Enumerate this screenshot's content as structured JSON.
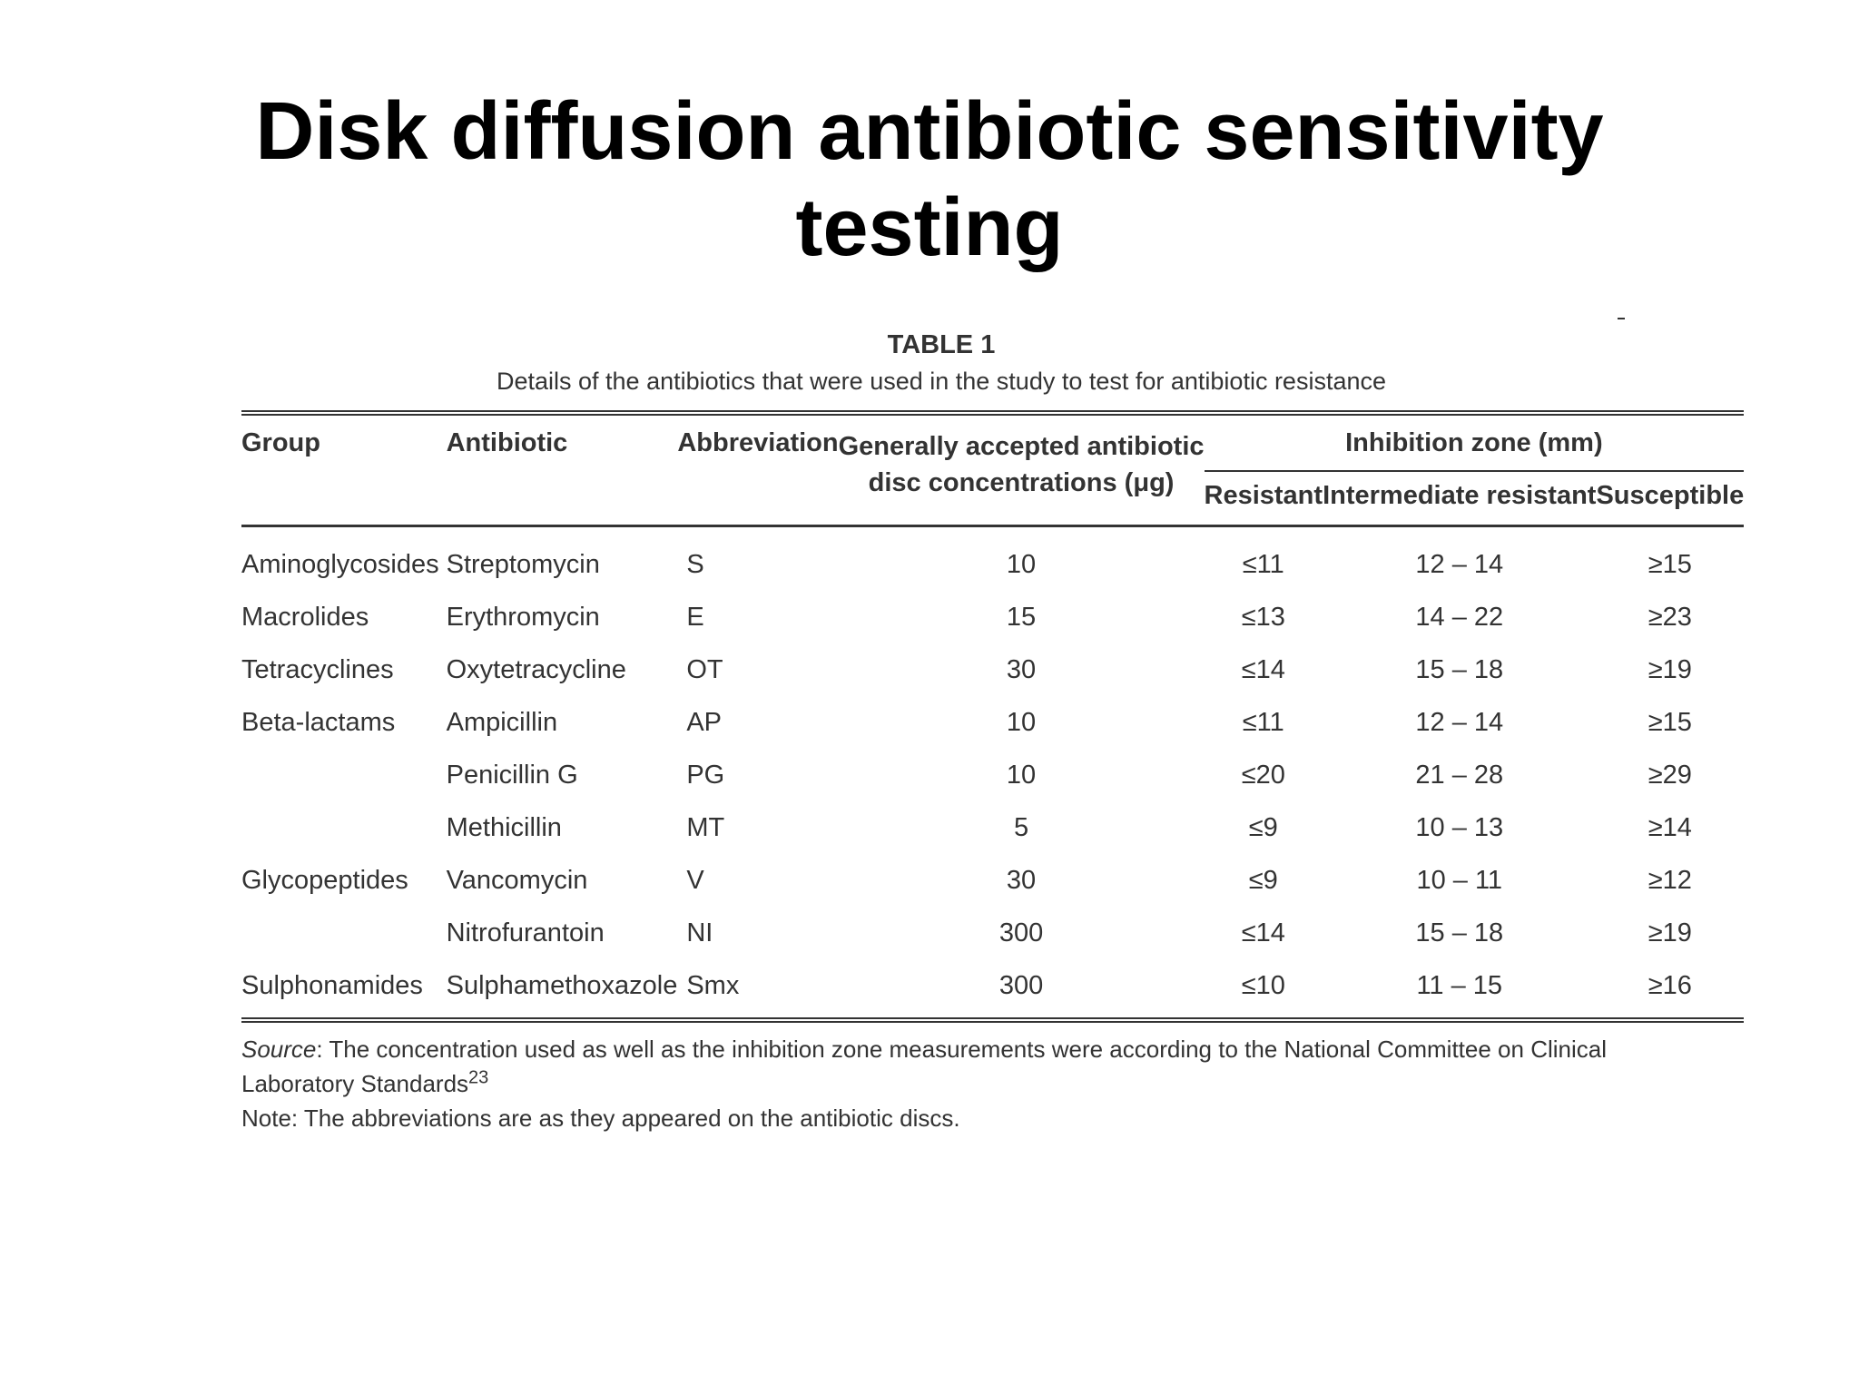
{
  "slide": {
    "title_line1": "Disk diffusion antibiotic sensitivity",
    "title_line2": "testing"
  },
  "table": {
    "label": "TABLE 1",
    "caption": "Details of the antibiotics that were used in the study to test for antibiotic resistance",
    "headers": {
      "group": "Group",
      "antibiotic": "Antibiotic",
      "abbreviation": "Abbreviation",
      "concentration_line1": "Generally accepted antibiotic",
      "concentration_line2": "disc concentrations (μg)",
      "inhibition_zone": "Inhibition zone (mm)",
      "resistant": "Resistant",
      "intermediate": "Intermediate resistant",
      "susceptible": "Susceptible"
    },
    "rows": [
      {
        "group": "Aminoglycosides",
        "antibiotic": "Streptomycin",
        "abbreviation": "S",
        "concentration": "10",
        "resistant": "≤11",
        "intermediate": "12 – 14",
        "susceptible": "≥15"
      },
      {
        "group": "Macrolides",
        "antibiotic": "Erythromycin",
        "abbreviation": "E",
        "concentration": "15",
        "resistant": "≤13",
        "intermediate": "14 – 22",
        "susceptible": "≥23"
      },
      {
        "group": "Tetracyclines",
        "antibiotic": "Oxytetracycline",
        "abbreviation": "OT",
        "concentration": "30",
        "resistant": "≤14",
        "intermediate": "15 – 18",
        "susceptible": "≥19"
      },
      {
        "group": "Beta-lactams",
        "antibiotic": "Ampicillin",
        "abbreviation": "AP",
        "concentration": "10",
        "resistant": "≤11",
        "intermediate": "12 – 14",
        "susceptible": "≥15"
      },
      {
        "group": "",
        "antibiotic": "Penicillin G",
        "abbreviation": "PG",
        "concentration": "10",
        "resistant": "≤20",
        "intermediate": "21 – 28",
        "susceptible": "≥29"
      },
      {
        "group": "",
        "antibiotic": "Methicillin",
        "abbreviation": "MT",
        "concentration": "5",
        "resistant": "≤9",
        "intermediate": "10 – 13",
        "susceptible": "≥14"
      },
      {
        "group": "Glycopeptides",
        "antibiotic": "Vancomycin",
        "abbreviation": "V",
        "concentration": "30",
        "resistant": "≤9",
        "intermediate": "10 – 11",
        "susceptible": "≥12"
      },
      {
        "group": "",
        "antibiotic": "Nitrofurantoin",
        "abbreviation": "NI",
        "concentration": "300",
        "resistant": "≤14",
        "intermediate": "15 – 18",
        "susceptible": "≥19"
      },
      {
        "group": "Sulphonamides",
        "antibiotic": "Sulphamethoxazole",
        "abbreviation": "Smx",
        "concentration": "300",
        "resistant": "≤10",
        "intermediate": "11 – 15",
        "susceptible": "≥16"
      }
    ],
    "source_label": "Source",
    "source_text": ": The concentration used as well as the inhibition zone measurements were according to the National Committee on Clinical Laboratory Standards",
    "source_ref": "23",
    "note": "Note: The abbreviations are as they appeared on the antibiotic discs."
  }
}
